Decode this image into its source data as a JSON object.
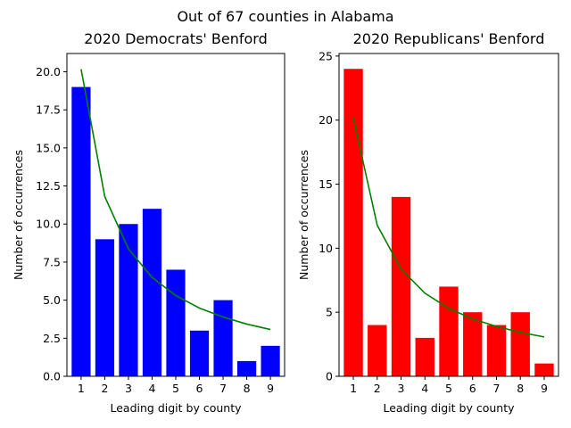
{
  "figure": {
    "suptitle": "Out of 67 counties in Alabama"
  },
  "chart_data": [
    {
      "type": "bar",
      "title": "2020 Democrats' Benford",
      "xlabel": "Leading digit by county",
      "ylabel": "Number of occurrences",
      "categories": [
        "1",
        "2",
        "3",
        "4",
        "5",
        "6",
        "7",
        "8",
        "9"
      ],
      "values": [
        19,
        9,
        10,
        11,
        7,
        3,
        5,
        1,
        2
      ],
      "bar_color": "#0000ff",
      "line": {
        "color": "#008000",
        "values": [
          20.17,
          11.8,
          8.37,
          6.49,
          5.3,
          4.48,
          3.89,
          3.43,
          3.07
        ]
      },
      "ylim": [
        0,
        21.2
      ],
      "yticks": [
        0.0,
        2.5,
        5.0,
        7.5,
        10.0,
        12.5,
        15.0,
        17.5,
        20.0
      ],
      "ytick_labels": [
        "0.0",
        "2.5",
        "5.0",
        "7.5",
        "10.0",
        "12.5",
        "15.0",
        "17.5",
        "20.0"
      ],
      "grid": false,
      "legend": "none"
    },
    {
      "type": "bar",
      "title": "2020 Republicans' Benford",
      "xlabel": "Leading digit by county",
      "ylabel": "Number of occurrences",
      "categories": [
        "1",
        "2",
        "3",
        "4",
        "5",
        "6",
        "7",
        "8",
        "9"
      ],
      "values": [
        24,
        4,
        14,
        3,
        7,
        5,
        4,
        5,
        1
      ],
      "bar_color": "#ff0000",
      "line": {
        "color": "#008000",
        "values": [
          20.17,
          11.8,
          8.37,
          6.49,
          5.3,
          4.48,
          3.89,
          3.43,
          3.07
        ]
      },
      "ylim": [
        0,
        25.2
      ],
      "yticks": [
        0,
        5,
        10,
        15,
        20,
        25
      ],
      "ytick_labels": [
        "0",
        "5",
        "10",
        "15",
        "20",
        "25"
      ],
      "grid": false,
      "legend": "none"
    }
  ]
}
